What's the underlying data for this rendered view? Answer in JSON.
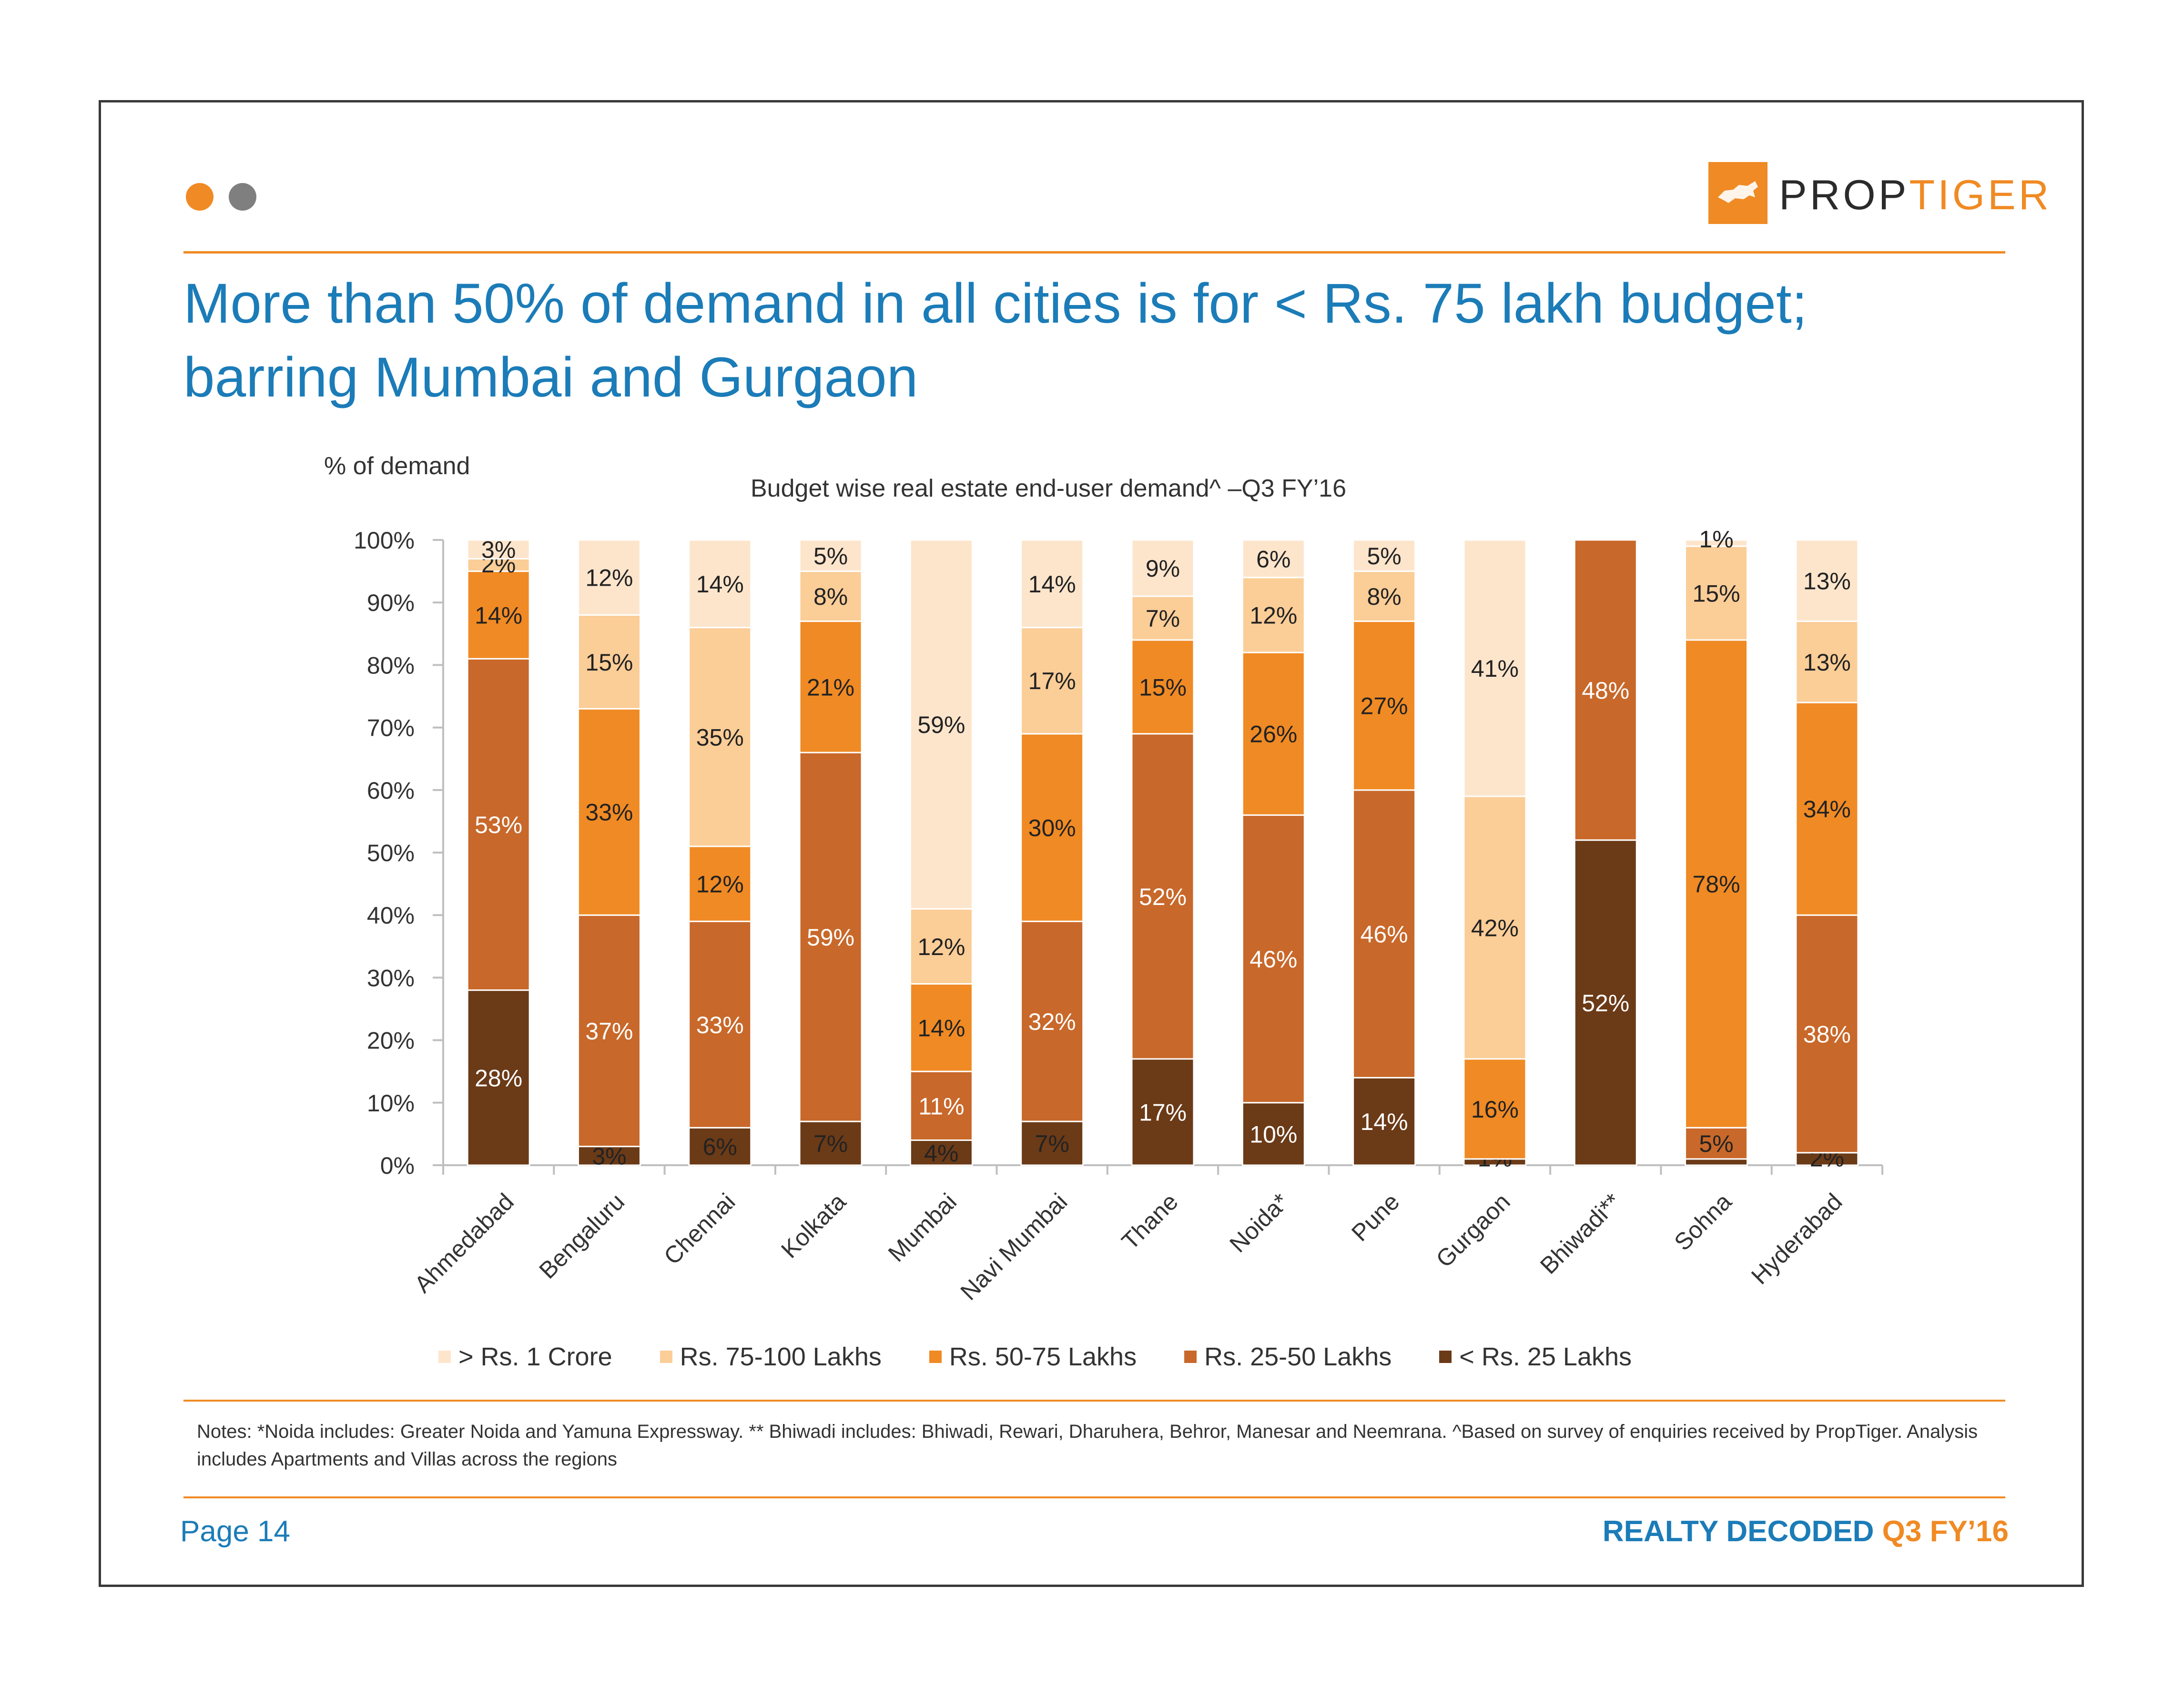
{
  "header": {
    "logo_text_main": "PROP",
    "logo_text_accent": "TIGER",
    "title_line1": "More than 50% of demand in all cities is for < Rs. 75 lakh budget;",
    "title_line2": "barring Mumbai and Gurgaon"
  },
  "colors": {
    "accent": "#f08a24",
    "brand_blue": "#1b7cb8",
    "dot_grey": "#7f7f7f"
  },
  "chart_data": {
    "type": "bar",
    "stacked": true,
    "title": "Budget wise real estate end-user demand^ –Q3 FY’16",
    "ylabel": "% of demand",
    "xlabel": "",
    "ylim": [
      0,
      100
    ],
    "yticks": [
      "0%",
      "10%",
      "20%",
      "30%",
      "40%",
      "50%",
      "60%",
      "70%",
      "80%",
      "90%",
      "100%"
    ],
    "categories": [
      "Ahmedabad",
      "Bengaluru",
      "Chennai",
      "Kolkata",
      "Mumbai",
      "Navi Mumbai",
      "Thane",
      "Noida*",
      "Pune",
      "Gurgaon",
      "Bhiwadi**",
      "Sohna",
      "Hyderabad"
    ],
    "series": [
      {
        "name": "< Rs. 25 Lakhs",
        "color": "#6b3a17",
        "values": [
          28,
          3,
          6,
          7,
          4,
          7,
          17,
          10,
          14,
          1,
          52,
          1,
          2
        ]
      },
      {
        "name": "Rs. 25-50 Lakhs",
        "color": "#c8682a",
        "values": [
          53,
          37,
          33,
          59,
          11,
          32,
          52,
          46,
          46,
          0,
          48,
          5,
          38
        ]
      },
      {
        "name": "Rs. 50-75 Lakhs",
        "color": "#f08a24",
        "values": [
          14,
          33,
          12,
          21,
          14,
          30,
          15,
          26,
          27,
          16,
          0,
          78,
          34
        ]
      },
      {
        "name": "Rs. 75-100 Lakhs",
        "color": "#fbcd97",
        "values": [
          2,
          15,
          35,
          8,
          12,
          17,
          7,
          12,
          8,
          42,
          0,
          15,
          13
        ]
      },
      {
        "name": "> Rs. 1 Crore",
        "color": "#fde5cc",
        "values": [
          3,
          12,
          14,
          5,
          59,
          14,
          9,
          6,
          5,
          41,
          0,
          1,
          13
        ]
      }
    ],
    "data_labels": [
      [
        "28%",
        "3%",
        "6%",
        "7%",
        "4%",
        "7%",
        "17%",
        "10%",
        "14%",
        "1%",
        "52%",
        "",
        "2%"
      ],
      [
        "53%",
        "37%",
        "33%",
        "59%",
        "11%",
        "32%",
        "52%",
        "46%",
        "46%",
        "",
        "48%",
        "5%",
        "38%"
      ],
      [
        "14%",
        "33%",
        "12%",
        "21%",
        "14%",
        "30%",
        "15%",
        "26%",
        "27%",
        "16%",
        "",
        "78%",
        "34%"
      ],
      [
        "2%",
        "15%",
        "35%",
        "8%",
        "12%",
        "17%",
        "7%",
        "12%",
        "8%",
        "42%",
        "",
        "15%",
        "13%"
      ],
      [
        "3%",
        "12%",
        "14%",
        "5%",
        "59%",
        "14%",
        "9%",
        "6%",
        "5%",
        "41%",
        "",
        "1%",
        "13%"
      ]
    ],
    "legend": [
      "> Rs. 1 Crore",
      "Rs. 75-100 Lakhs",
      "Rs. 50-75 Lakhs",
      "Rs. 25-50 Lakhs",
      "< Rs. 25 Lakhs"
    ],
    "legend_colors": [
      "#fde5cc",
      "#fbcd97",
      "#f08a24",
      "#c8682a",
      "#6b3a17"
    ],
    "legend_position": "bottom"
  },
  "notes": "Notes: *Noida includes: Greater Noida and Yamuna Expressway. ** Bhiwadi includes: Bhiwadi, Rewari, Dharuhera, Behror, Manesar and Neemrana. ^Based on survey of enquiries received by PropTiger. Analysis includes Apartments and Villas across the regions",
  "footer": {
    "page": "Page 14",
    "brand": "REALTY DECODED",
    "period": "Q3 FY’16"
  }
}
